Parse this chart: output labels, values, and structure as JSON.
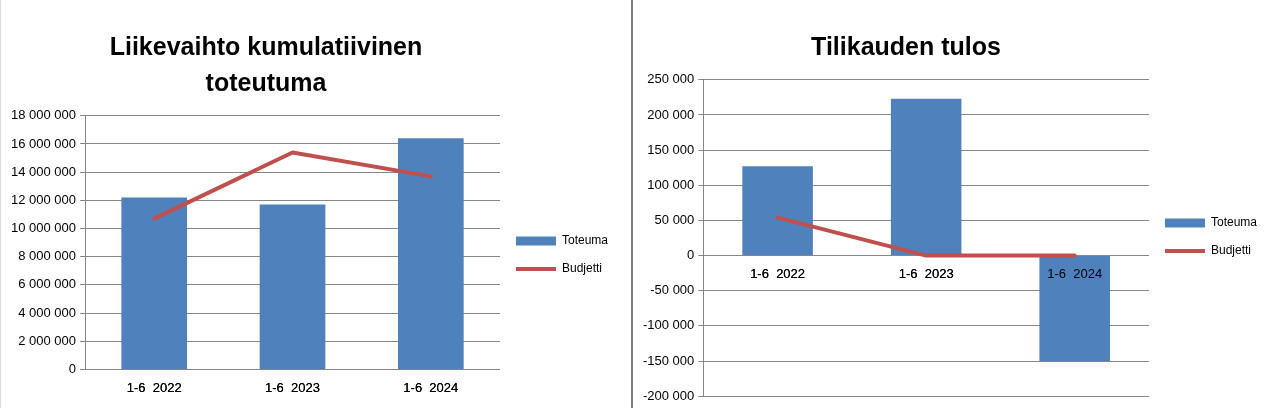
{
  "chart_data": [
    {
      "type": "bar",
      "title": "Liikevaihto kumulatiivinen toteutuma",
      "categories": [
        "1-6  2022",
        "1-6  2023",
        "1-6  2024"
      ],
      "series": [
        {
          "name": "Toteuma",
          "color": "#4f81bd",
          "values": [
            12200000,
            11700000,
            16400000
          ]
        },
        {
          "name": "Budjetti",
          "type": "line",
          "color": "#c0504d",
          "values": [
            10700000,
            15400000,
            13700000
          ]
        }
      ],
      "ylim": [
        0,
        18000000
      ],
      "yticks": [
        {
          "value": 0,
          "label": "0"
        },
        {
          "value": 2000000,
          "label": "2 000 000"
        },
        {
          "value": 4000000,
          "label": "4 000 000"
        },
        {
          "value": 6000000,
          "label": "6 000 000"
        },
        {
          "value": 8000000,
          "label": "8 000 000"
        },
        {
          "value": 10000000,
          "label": "10 000 000"
        },
        {
          "value": 12000000,
          "label": "12 000 000"
        },
        {
          "value": 14000000,
          "label": "14 000 000"
        },
        {
          "value": 16000000,
          "label": "16 000 000"
        },
        {
          "value": 18000000,
          "label": "18 000 000"
        }
      ],
      "grid": "y",
      "legend": "right",
      "marker": "none"
    },
    {
      "type": "bar",
      "title": "Tilikauden tulos",
      "categories": [
        "1-6  2022",
        "1-6  2023",
        "1-6  2024"
      ],
      "series": [
        {
          "name": "Toteuma",
          "color": "#4f81bd",
          "values": [
            127000,
            223000,
            -150000
          ]
        },
        {
          "name": "Budjetti",
          "type": "line",
          "color": "#c0504d",
          "values": [
            54000,
            0,
            0
          ]
        }
      ],
      "ylim": [
        -200000,
        250000
      ],
      "yticks": [
        {
          "value": -200000,
          "label": "-200 000"
        },
        {
          "value": -150000,
          "label": "-150 000"
        },
        {
          "value": -100000,
          "label": "-100 000"
        },
        {
          "value": -50000,
          "label": "-50 000"
        },
        {
          "value": 0,
          "label": "0"
        },
        {
          "value": 50000,
          "label": "50 000"
        },
        {
          "value": 100000,
          "label": "100 000"
        },
        {
          "value": 150000,
          "label": "150 000"
        },
        {
          "value": 200000,
          "label": "200 000"
        },
        {
          "value": 250000,
          "label": "250 000"
        }
      ],
      "grid": "y",
      "legend": "right",
      "marker": "none"
    }
  ]
}
